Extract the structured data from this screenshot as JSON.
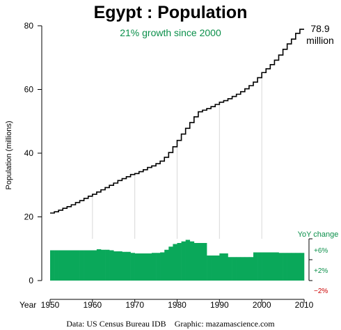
{
  "title": "Egypt :  Population",
  "subtitle": "21% growth since 2000",
  "end_label": {
    "value": "78.9",
    "unit": "million"
  },
  "footer": "Data: US Census Bureau IDB    Graphic: mazamascience.com",
  "yoy": {
    "title": "YoY change",
    "ticks": [
      "+6%",
      "+2%",
      "−2%"
    ]
  },
  "colors": {
    "line": "#000000",
    "yoy_fill": "#0aa85a",
    "yoy_text": "#0a8f4a",
    "negative": "#cc0000",
    "grid": "#d8d8d8"
  },
  "chart_data": {
    "type": "line",
    "title": "Egypt :  Population",
    "ylabel": "Population (millions)",
    "xlabel_prefix": "Year",
    "xlim": [
      1950,
      2010
    ],
    "ylim": [
      0,
      80
    ],
    "x_ticks": [
      1950,
      1960,
      1970,
      1980,
      1990,
      2000,
      2010
    ],
    "y_ticks": [
      0,
      20,
      40,
      60,
      80
    ],
    "series": [
      {
        "x": [
          1950,
          1951,
          1952,
          1953,
          1954,
          1955,
          1956,
          1957,
          1958,
          1959,
          1960,
          1961,
          1962,
          1963,
          1964,
          1965,
          1966,
          1967,
          1968,
          1969,
          1970,
          1971,
          1972,
          1973,
          1974,
          1975,
          1976,
          1977,
          1978,
          1979,
          1980,
          1981,
          1982,
          1983,
          1984,
          1985,
          1986,
          1987,
          1988,
          1989,
          1990,
          1991,
          1992,
          1993,
          1994,
          1995,
          1996,
          1997,
          1998,
          1999,
          2000,
          2001,
          2002,
          2003,
          2004,
          2005,
          2006,
          2007,
          2008,
          2009
        ],
        "values": [
          21.2,
          21.6,
          22.1,
          22.7,
          23.2,
          23.8,
          24.5,
          25.1,
          25.8,
          26.5,
          27.1,
          27.8,
          28.5,
          29.2,
          29.9,
          30.6,
          31.4,
          32.0,
          32.6,
          33.3,
          33.6,
          34.2,
          34.8,
          35.5,
          36.0,
          36.7,
          37.5,
          38.7,
          40.2,
          42.0,
          44.0,
          46.0,
          47.8,
          49.6,
          51.4,
          53.0,
          53.5,
          54.0,
          54.6,
          55.3,
          56.0,
          56.5,
          57.1,
          57.8,
          58.5,
          59.3,
          60.2,
          61.2,
          62.3,
          63.7,
          65.3,
          66.5,
          67.8,
          69.2,
          70.8,
          72.6,
          74.3,
          75.8,
          77.6,
          78.9
        ]
      }
    ],
    "yoy_change": {
      "x": [
        1950,
        1951,
        1952,
        1953,
        1954,
        1955,
        1956,
        1957,
        1958,
        1959,
        1960,
        1961,
        1962,
        1963,
        1964,
        1965,
        1966,
        1967,
        1968,
        1969,
        1970,
        1971,
        1972,
        1973,
        1974,
        1975,
        1976,
        1977,
        1978,
        1979,
        1980,
        1981,
        1982,
        1983,
        1984,
        1985,
        1986,
        1987,
        1988,
        1989,
        1990,
        1991,
        1992,
        1993,
        1994,
        1995,
        1996,
        1997,
        1998,
        1999,
        2000,
        2001,
        2002,
        2003,
        2004,
        2005,
        2006,
        2007,
        2008,
        2009
      ],
      "values": [
        3.8,
        3.8,
        3.8,
        3.8,
        3.8,
        3.8,
        3.8,
        3.8,
        3.8,
        3.8,
        3.8,
        4.0,
        3.9,
        3.9,
        3.8,
        3.6,
        3.6,
        3.5,
        3.5,
        3.3,
        3.2,
        3.2,
        3.2,
        3.2,
        3.3,
        3.3,
        3.4,
        3.9,
        4.5,
        5.0,
        5.2,
        5.5,
        5.8,
        5.5,
        5.2,
        5.2,
        5.2,
        2.8,
        2.8,
        2.8,
        3.2,
        3.2,
        2.5,
        2.5,
        2.5,
        2.5,
        2.5,
        2.5,
        3.4,
        3.4,
        3.4,
        3.4,
        3.4,
        3.4,
        3.3,
        3.3,
        3.3,
        3.3,
        3.3,
        3.3
      ],
      "ylim": [
        -2,
        6
      ]
    }
  }
}
